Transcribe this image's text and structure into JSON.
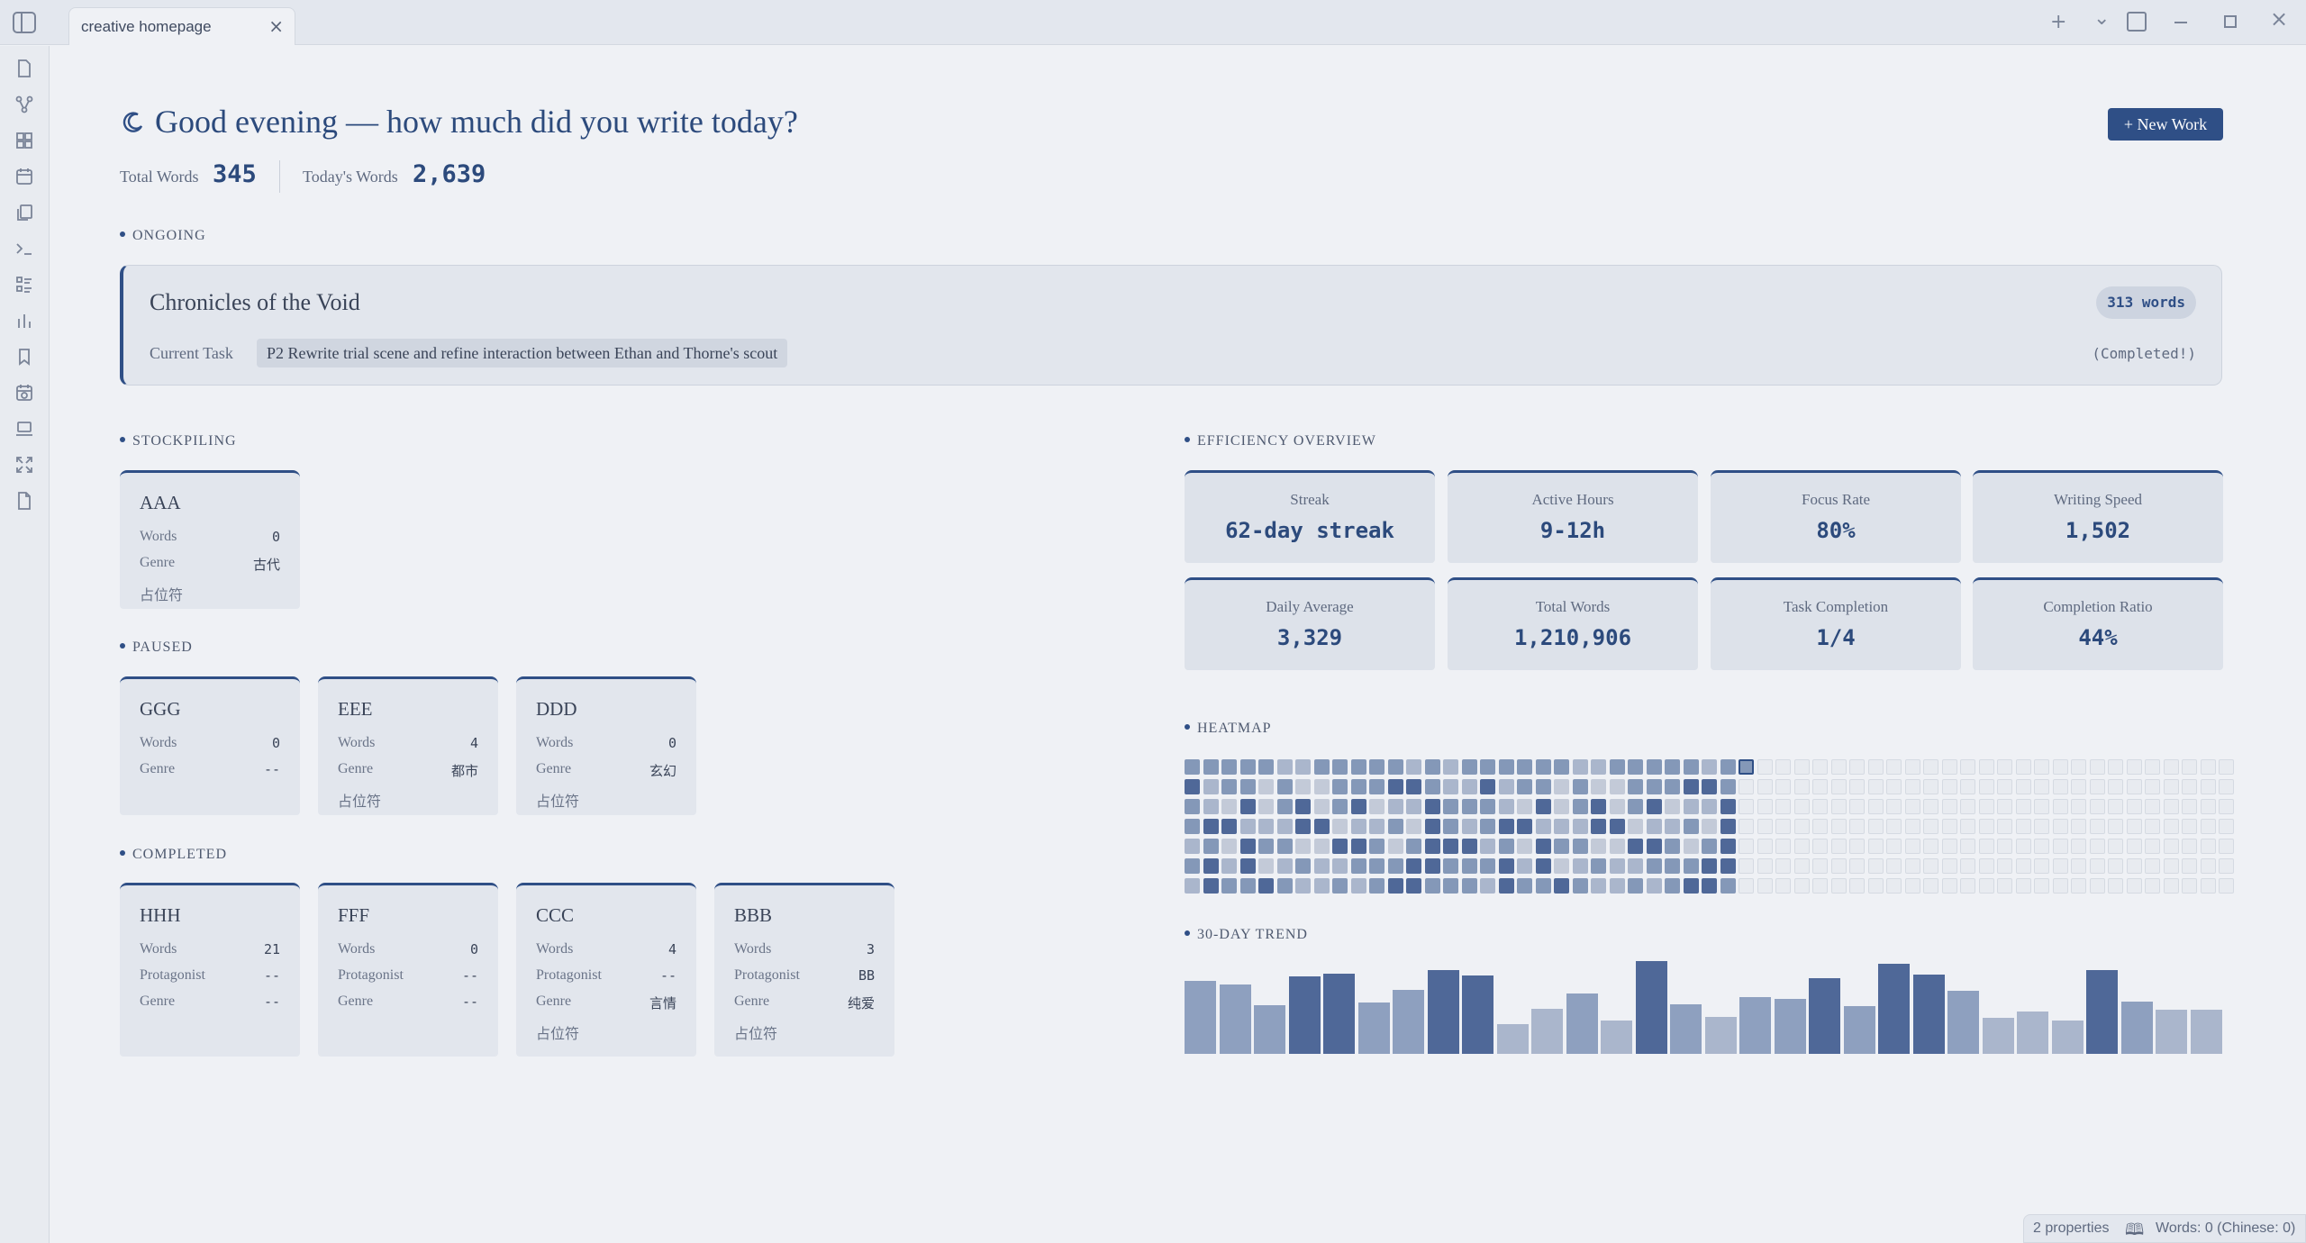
{
  "tab": {
    "title": "creative homepage",
    "close_icon": "×"
  },
  "topbar_icons": {
    "new_tab": "+",
    "dropdown": "⌄"
  },
  "header": {
    "title": "Good evening — how much did you write today?",
    "new_work_label": "+ New Work",
    "stats": [
      {
        "label": "Total Words",
        "value": "345"
      },
      {
        "label": "Today's Words",
        "value": "2,639"
      }
    ]
  },
  "sections": {
    "ongoing": "ONGOING",
    "stockpiling": "STOCKPILING",
    "paused": "PAUSED",
    "completed": "COMPLETED",
    "efficiency": "EFFICIENCY OVERVIEW",
    "heatmap": "HEATMAP",
    "trend": "30-DAY TREND"
  },
  "ongoing": {
    "title": "Chronicles of the Void",
    "words": "313 words",
    "task_label": "Current Task",
    "task": "P2 Rewrite trial scene and refine interaction between Ethan and Thorne's scout",
    "status": "(Completed!)"
  },
  "stockpiling": [
    {
      "title": "AAA",
      "fields": [
        {
          "label": "Words",
          "value": "0"
        },
        {
          "label": "Genre",
          "value": "古代"
        }
      ],
      "note": "占位符"
    }
  ],
  "paused": [
    {
      "title": "GGG",
      "fields": [
        {
          "label": "Words",
          "value": "0"
        },
        {
          "label": "Genre",
          "value": "--"
        }
      ],
      "note": ""
    },
    {
      "title": "EEE",
      "fields": [
        {
          "label": "Words",
          "value": "4"
        },
        {
          "label": "Genre",
          "value": "都市"
        }
      ],
      "note": "占位符"
    },
    {
      "title": "DDD",
      "fields": [
        {
          "label": "Words",
          "value": "0"
        },
        {
          "label": "Genre",
          "value": "玄幻"
        }
      ],
      "note": "占位符"
    }
  ],
  "completed": [
    {
      "title": "HHH",
      "fields": [
        {
          "label": "Words",
          "value": "21"
        },
        {
          "label": "Protagonist",
          "value": "--"
        },
        {
          "label": "Genre",
          "value": "--"
        }
      ],
      "note": ""
    },
    {
      "title": "FFF",
      "fields": [
        {
          "label": "Words",
          "value": "0"
        },
        {
          "label": "Protagonist",
          "value": "--"
        },
        {
          "label": "Genre",
          "value": "--"
        }
      ],
      "note": ""
    },
    {
      "title": "CCC",
      "fields": [
        {
          "label": "Words",
          "value": "4"
        },
        {
          "label": "Protagonist",
          "value": "--"
        },
        {
          "label": "Genre",
          "value": "言情"
        }
      ],
      "note": "占位符"
    },
    {
      "title": "BBB",
      "fields": [
        {
          "label": "Words",
          "value": "3"
        },
        {
          "label": "Protagonist",
          "value": "BB"
        },
        {
          "label": "Genre",
          "value": "纯爱"
        }
      ],
      "note": "占位符"
    }
  ],
  "efficiency": [
    {
      "label": "Streak",
      "value": "62-day streak"
    },
    {
      "label": "Active Hours",
      "value": "9-12h"
    },
    {
      "label": "Focus Rate",
      "value": "80%"
    },
    {
      "label": "Writing Speed",
      "value": "1,502"
    },
    {
      "label": "Daily Average",
      "value": "3,329"
    },
    {
      "label": "Total Words",
      "value": "1,210,906"
    },
    {
      "label": "Task Completion",
      "value": "1/4"
    },
    {
      "label": "Completion Ratio",
      "value": "44%"
    }
  ],
  "heatmap": {
    "weeks": 57,
    "days": 7,
    "filled_weeks": 30,
    "today_week": 30,
    "today_day": 0,
    "levels": [
      "3333322333332323",
      "4233131133344322",
      "3214134134122433",
      "3442224412231432",
      "2314331144313444",
      "3424123223334433",
      "2433432232344333"
    ],
    "colors": {
      "empty": "#e8ebf0",
      "empty_border": "#d5dae2",
      "l1": "#c3cad8",
      "l2": "#aab6cc",
      "l3": "#8498b8",
      "l4": "#4f6898",
      "today_border": "#2f4f86"
    }
  },
  "trend": {
    "values": [
      78,
      74,
      52,
      83,
      86,
      55,
      68,
      89,
      84,
      32,
      48,
      64,
      36,
      99,
      53,
      39,
      61,
      59,
      81,
      51,
      96,
      85,
      67,
      38,
      45,
      36,
      89,
      56,
      47,
      47
    ],
    "colors": [
      "#8ea0bf",
      "#8ea0bf",
      "#8ea0bf",
      "#4f6898",
      "#4f6898",
      "#8ea0bf",
      "#8ea0bf",
      "#4f6898",
      "#4f6898",
      "#aab6cc",
      "#aab6cc",
      "#8ea0bf",
      "#aab6cc",
      "#4f6898",
      "#8ea0bf",
      "#aab6cc",
      "#8ea0bf",
      "#8ea0bf",
      "#4f6898",
      "#8ea0bf",
      "#4f6898",
      "#4f6898",
      "#8ea0bf",
      "#aab6cc",
      "#aab6cc",
      "#aab6cc",
      "#4f6898",
      "#8ea0bf",
      "#aab6cc",
      "#aab6cc"
    ]
  },
  "statusbar": {
    "properties": "2 properties",
    "book_icon": "🕮",
    "words": "Words: 0 (Chinese: 0)"
  }
}
